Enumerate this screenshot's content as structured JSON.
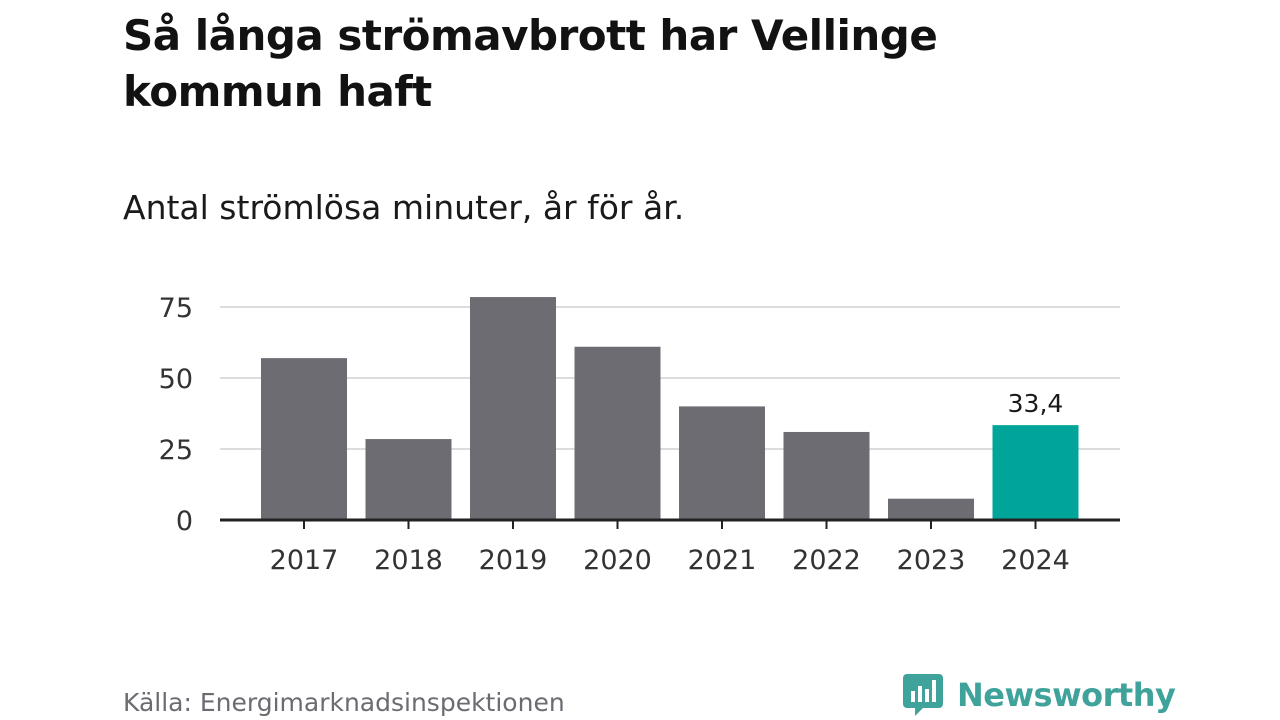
{
  "title": "Så långa strömavbrott har Vellinge kommun haft",
  "subtitle": "Antal strömlösa minuter, år för år.",
  "source": "Källa: Energimarknadsinspektionen",
  "brand": {
    "name": "Newsworthy",
    "color": "#3fa39b",
    "icon": "bar-chart-speech-bubble-icon"
  },
  "colors": {
    "bar": "#6d6c73",
    "highlight": "#00a499",
    "grid": "#dcdcdc",
    "axis": "#222222",
    "tick_text": "#333333"
  },
  "chart_data": {
    "type": "bar",
    "title": "Så långa strömavbrott har Vellinge kommun haft",
    "subtitle": "Antal strömlösa minuter, år för år.",
    "xlabel": "",
    "ylabel": "",
    "categories": [
      "2017",
      "2018",
      "2019",
      "2020",
      "2021",
      "2022",
      "2023",
      "2024"
    ],
    "values": [
      57,
      28.5,
      78.5,
      61,
      40,
      31,
      7.5,
      33.4
    ],
    "highlight_index": 7,
    "annotations": [
      {
        "category": "2024",
        "label": "33,4"
      }
    ],
    "yticks": [
      0,
      25,
      50,
      75
    ],
    "ytick_labels": [
      "0",
      "25",
      "50",
      "75"
    ],
    "ylim": [
      0,
      78.5
    ],
    "grid": true,
    "legend": "none"
  }
}
